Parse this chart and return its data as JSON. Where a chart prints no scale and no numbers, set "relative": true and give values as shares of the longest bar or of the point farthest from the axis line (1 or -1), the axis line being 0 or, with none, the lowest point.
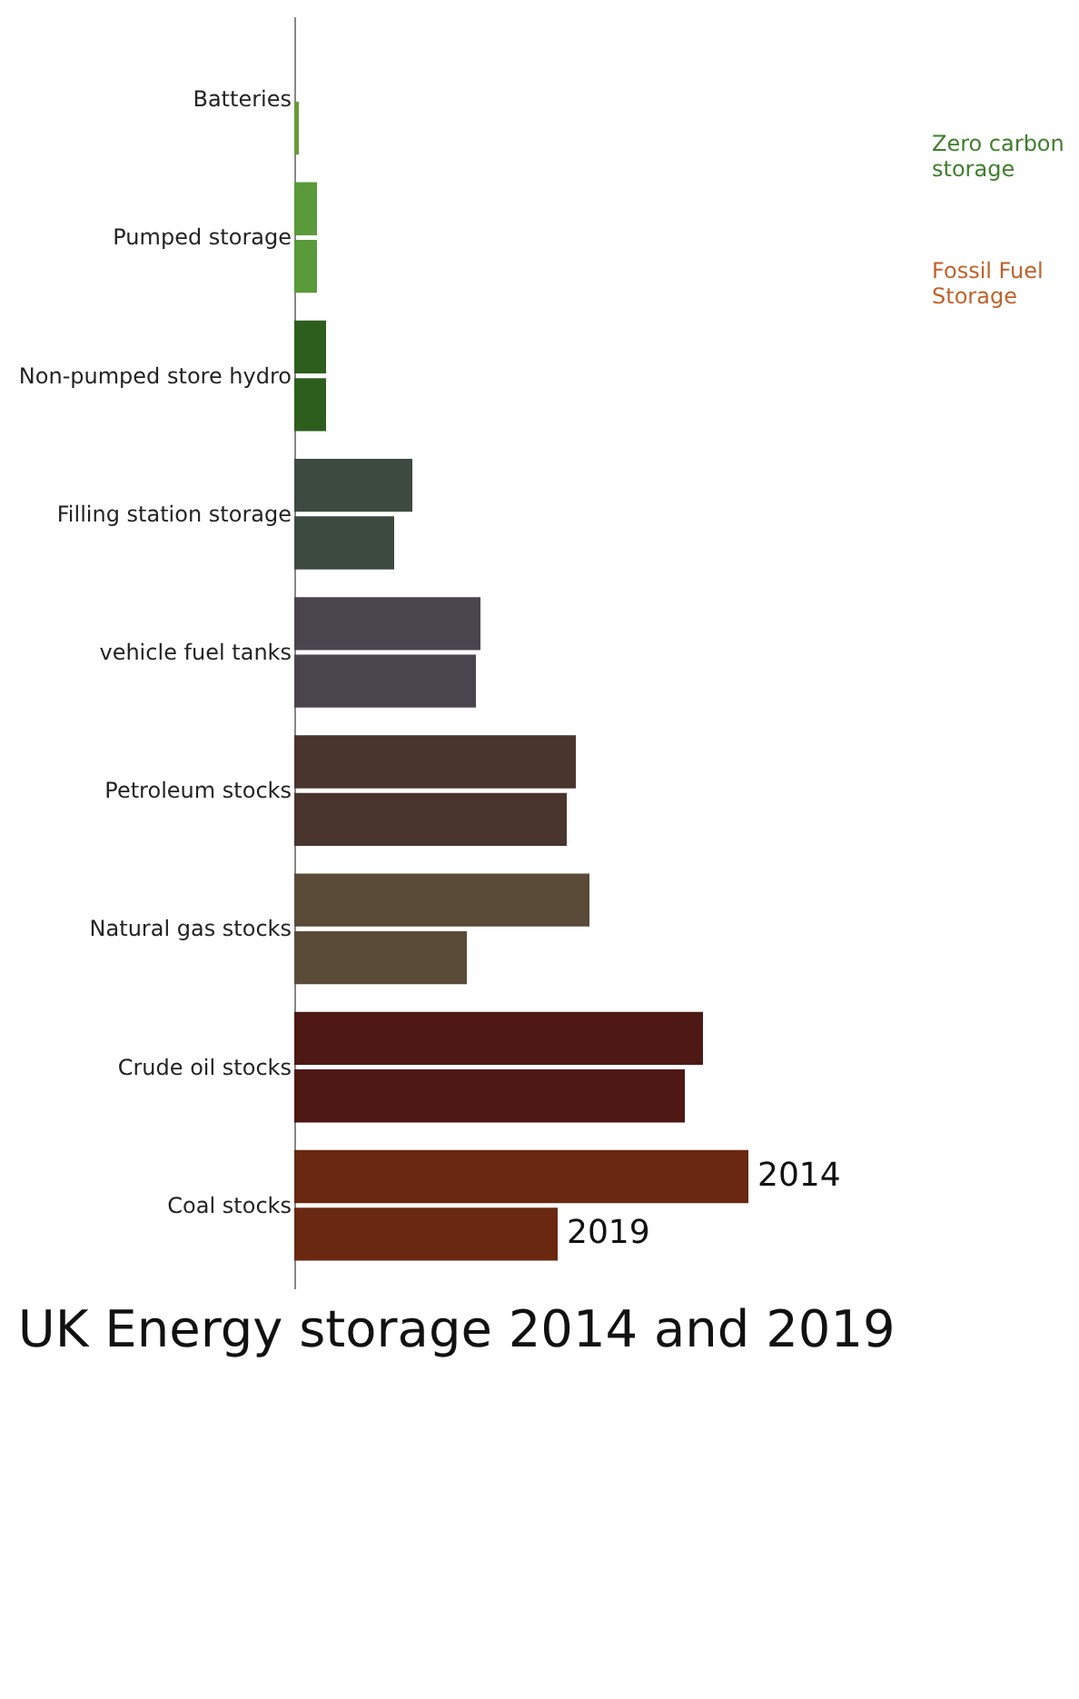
{
  "chart_data": {
    "type": "bar",
    "orientation": "horizontal",
    "relative": true,
    "title": "UK Energy storage 2014 and 2019",
    "categories": [
      "Batteries",
      "Pumped storage",
      "Non-pumped store hydro",
      "Filling station storage",
      "vehicle fuel tanks",
      "Petroleum stocks",
      "Natural gas stocks",
      "Crude oil stocks",
      "Coal stocks"
    ],
    "series": [
      {
        "name": "2014",
        "values": [
          null,
          0.05,
          0.07,
          0.26,
          0.41,
          0.62,
          0.65,
          0.9,
          1
        ],
        "colors": [
          "#6a9a3a",
          "#5a9a3a",
          "#2e5e1e",
          "#3c4a40",
          "#4a454d",
          "#4a342e",
          "#5a4a38",
          "#4e1814",
          "#6a2810"
        ]
      },
      {
        "name": "2019",
        "values": [
          0.01,
          0.05,
          0.07,
          0.22,
          0.4,
          0.6,
          0.38,
          0.86,
          0.58
        ],
        "colors": [
          "#6a9a3a",
          "#5a9a3a",
          "#2e5e1e",
          "#3c4a40",
          "#4a454d",
          "#4a342e",
          "#5a4a38",
          "#4e1814",
          "#6a2810"
        ]
      }
    ],
    "annotations": [
      "Zero carbon storage",
      "Fossil Fuel Storage"
    ],
    "legend": false
  }
}
